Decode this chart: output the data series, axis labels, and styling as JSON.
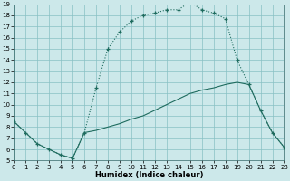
{
  "xlabel": "Humidex (Indice chaleur)",
  "bg_color": "#cce8ea",
  "line_color": "#1e6b5e",
  "grid_color": "#88c0c4",
  "xlim": [
    0,
    23
  ],
  "ylim": [
    5,
    19
  ],
  "xticks": [
    0,
    1,
    2,
    3,
    4,
    5,
    6,
    7,
    8,
    9,
    10,
    11,
    12,
    13,
    14,
    15,
    16,
    17,
    18,
    19,
    20,
    21,
    22,
    23
  ],
  "yticks": [
    5,
    6,
    7,
    8,
    9,
    10,
    11,
    12,
    13,
    14,
    15,
    16,
    17,
    18,
    19
  ],
  "curve1_x": [
    0,
    1,
    2,
    3,
    4,
    5,
    6,
    7,
    8,
    9,
    10,
    11,
    12,
    13,
    14,
    15,
    16,
    17,
    18,
    19,
    20,
    21,
    22,
    23
  ],
  "curve1_y": [
    8.5,
    7.5,
    6.5,
    6.0,
    5.5,
    5.2,
    7.5,
    11.5,
    15.0,
    16.5,
    17.5,
    18.0,
    18.2,
    18.5,
    18.5,
    19.2,
    18.5,
    18.2,
    17.7,
    14.0,
    11.8,
    9.5,
    7.5,
    6.2
  ],
  "curve2_x": [
    0,
    1,
    2,
    3,
    4,
    5,
    6,
    7,
    8,
    9,
    10,
    11,
    12,
    13,
    14,
    15,
    16,
    17,
    18,
    19,
    20,
    21,
    22,
    23
  ],
  "curve2_y": [
    8.5,
    7.5,
    6.5,
    6.0,
    5.5,
    5.2,
    7.5,
    7.7,
    8.0,
    8.3,
    8.7,
    9.0,
    9.5,
    10.0,
    10.5,
    11.0,
    11.3,
    11.5,
    11.8,
    12.0,
    11.8,
    9.5,
    7.5,
    6.2
  ],
  "tick_fontsize": 5,
  "xlabel_fontsize": 6
}
